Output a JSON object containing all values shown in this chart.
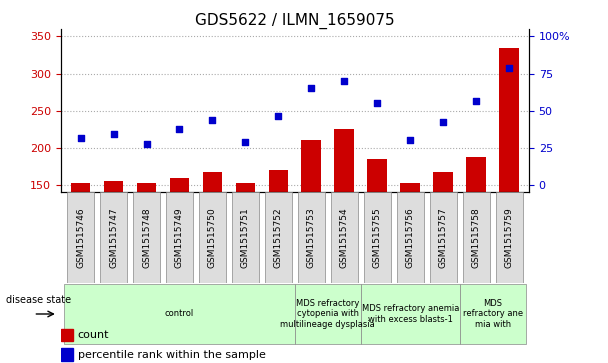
{
  "title": "GDS5622 / ILMN_1659075",
  "samples": [
    "GSM1515746",
    "GSM1515747",
    "GSM1515748",
    "GSM1515749",
    "GSM1515750",
    "GSM1515751",
    "GSM1515752",
    "GSM1515753",
    "GSM1515754",
    "GSM1515755",
    "GSM1515756",
    "GSM1515757",
    "GSM1515758",
    "GSM1515759"
  ],
  "bar_values": [
    153,
    156,
    152,
    160,
    168,
    152,
    170,
    210,
    225,
    185,
    152,
    167,
    188,
    335
  ],
  "scatter_values": [
    213,
    218,
    205,
    225,
    238,
    208,
    243,
    280,
    290,
    260,
    210,
    235,
    263,
    308
  ],
  "ylim_left": [
    140,
    360
  ],
  "yticks_left": [
    150,
    200,
    250,
    300,
    350
  ],
  "right_tick_labels": [
    "0",
    "25",
    "50",
    "75",
    "100%"
  ],
  "bar_color": "#cc0000",
  "scatter_color": "#0000cc",
  "grid_color": "#aaaaaa",
  "background_color": "#ffffff",
  "tick_label_color_left": "#cc0000",
  "tick_label_color_right": "#0000cc",
  "disease_groups": [
    {
      "label": "control",
      "start": 0,
      "end": 7,
      "color": "#ccffcc"
    },
    {
      "label": "MDS refractory\ncytopenia with\nmultilineage dysplasia",
      "start": 7,
      "end": 9,
      "color": "#ccffcc"
    },
    {
      "label": "MDS refractory anemia\nwith excess blasts-1",
      "start": 9,
      "end": 12,
      "color": "#ccffcc"
    },
    {
      "label": "MDS\nrefractory ane\nmia with",
      "start": 12,
      "end": 14,
      "color": "#ccffcc"
    }
  ],
  "legend_count_label": "count",
  "legend_pct_label": "percentile rank within the sample",
  "disease_state_label": "disease state",
  "bar_width": 0.6,
  "title_fontsize": 11,
  "tick_fontsize": 8,
  "label_fontsize": 7,
  "legend_fontsize": 8
}
